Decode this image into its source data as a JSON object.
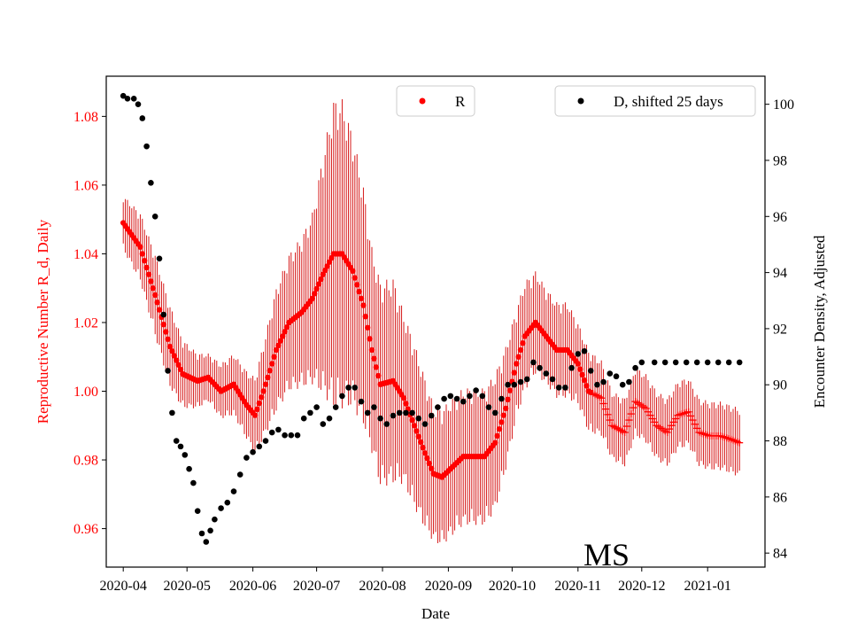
{
  "chart_data": {
    "type": "scatter",
    "title": "",
    "annotation": "MS",
    "xlabel": "Date",
    "ylabel_left": "Reproductive Number R_d, Daily",
    "ylabel_right": "Encounter Density, Adjusted",
    "x_range_days": [
      -8,
      302
    ],
    "x_ticks": [
      {
        "label": "2020-04",
        "day": 0
      },
      {
        "label": "2020-05",
        "day": 30
      },
      {
        "label": "2020-06",
        "day": 61
      },
      {
        "label": "2020-07",
        "day": 91
      },
      {
        "label": "2020-08",
        "day": 122
      },
      {
        "label": "2020-09",
        "day": 153
      },
      {
        "label": "2020-10",
        "day": 183
      },
      {
        "label": "2020-11",
        "day": 214
      },
      {
        "label": "2020-12",
        "day": 244
      },
      {
        "label": "2021-01",
        "day": 275
      }
    ],
    "y_left": {
      "range": [
        0.9488,
        1.0917
      ],
      "ticks": [
        "0.96",
        "0.98",
        "1.00",
        "1.02",
        "1.04",
        "1.06",
        "1.08"
      ],
      "color": "#ff0000"
    },
    "y_right": {
      "range": [
        83.5,
        101
      ],
      "ticks": [
        "84",
        "86",
        "88",
        "90",
        "92",
        "94",
        "96",
        "98",
        "100"
      ],
      "color": "#000000"
    },
    "legend": [
      {
        "label": "R",
        "color": "#ff0000",
        "position": "top-center"
      },
      {
        "label": "D, shifted 25 days",
        "color": "#000000",
        "position": "top-right"
      }
    ],
    "series": [
      {
        "name": "R",
        "axis": "left",
        "color": "#ff0000",
        "points": [
          [
            0,
            1.049,
            0.008
          ],
          [
            8,
            1.042,
            0.01
          ],
          [
            15,
            1.028,
            0.012
          ],
          [
            22,
            1.013,
            0.012
          ],
          [
            28,
            1.005,
            0.01
          ],
          [
            35,
            1.003,
            0.008
          ],
          [
            40,
            1.004,
            0.007
          ],
          [
            46,
            1.0,
            0.008
          ],
          [
            52,
            1.002,
            0.009
          ],
          [
            58,
            0.996,
            0.01
          ],
          [
            62,
            0.993,
            0.011
          ],
          [
            66,
            1.0,
            0.014
          ],
          [
            72,
            1.012,
            0.018
          ],
          [
            78,
            1.02,
            0.02
          ],
          [
            84,
            1.023,
            0.022
          ],
          [
            89,
            1.027,
            0.025
          ],
          [
            94,
            1.034,
            0.035
          ],
          [
            99,
            1.04,
            0.045
          ],
          [
            103,
            1.04,
            0.045
          ],
          [
            108,
            1.035,
            0.04
          ],
          [
            113,
            1.025,
            0.035
          ],
          [
            117,
            1.012,
            0.03
          ],
          [
            121,
            1.002,
            0.03
          ],
          [
            127,
            1.003,
            0.03
          ],
          [
            132,
            0.998,
            0.025
          ],
          [
            137,
            0.99,
            0.024
          ],
          [
            142,
            0.982,
            0.022
          ],
          [
            146,
            0.976,
            0.02
          ],
          [
            150,
            0.975,
            0.02
          ],
          [
            155,
            0.978,
            0.02
          ],
          [
            160,
            0.981,
            0.02
          ],
          [
            165,
            0.981,
            0.02
          ],
          [
            170,
            0.981,
            0.02
          ],
          [
            175,
            0.985,
            0.02
          ],
          [
            180,
            0.995,
            0.018
          ],
          [
            185,
            1.008,
            0.016
          ],
          [
            189,
            1.016,
            0.016
          ],
          [
            194,
            1.02,
            0.015
          ],
          [
            199,
            1.016,
            0.014
          ],
          [
            204,
            1.012,
            0.014
          ],
          [
            209,
            1.012,
            0.014
          ],
          [
            214,
            1.008,
            0.012
          ],
          [
            219,
            1.0,
            0.012
          ],
          [
            225,
            0.998,
            0.011
          ],
          [
            230,
            0.99,
            0.01
          ],
          [
            236,
            0.988,
            0.01
          ],
          [
            241,
            0.997,
            0.01
          ],
          [
            246,
            0.995,
            0.01
          ],
          [
            251,
            0.99,
            0.01
          ],
          [
            256,
            0.988,
            0.01
          ],
          [
            261,
            0.993,
            0.01
          ],
          [
            266,
            0.994,
            0.01
          ],
          [
            271,
            0.988,
            0.01
          ],
          [
            276,
            0.987,
            0.01
          ],
          [
            281,
            0.987,
            0.01
          ],
          [
            286,
            0.986,
            0.01
          ],
          [
            290,
            0.985,
            0.01
          ]
        ],
        "plus_markers_from_day": 221
      },
      {
        "name": "D, shifted 25 days",
        "axis": "right",
        "color": "#000000",
        "points": [
          [
            0,
            100.3
          ],
          [
            2,
            100.2
          ],
          [
            5,
            100.2
          ],
          [
            7,
            100.0
          ],
          [
            9,
            99.5
          ],
          [
            11,
            98.5
          ],
          [
            13,
            97.2
          ],
          [
            15,
            96.0
          ],
          [
            17,
            94.5
          ],
          [
            19,
            92.5
          ],
          [
            21,
            90.5
          ],
          [
            23,
            89.0
          ],
          [
            25,
            88.0
          ],
          [
            27,
            87.8
          ],
          [
            29,
            87.5
          ],
          [
            31,
            87.0
          ],
          [
            33,
            86.5
          ],
          [
            35,
            85.5
          ],
          [
            37,
            84.7
          ],
          [
            39,
            84.4
          ],
          [
            41,
            84.8
          ],
          [
            43,
            85.2
          ],
          [
            46,
            85.6
          ],
          [
            49,
            85.8
          ],
          [
            52,
            86.2
          ],
          [
            55,
            86.8
          ],
          [
            58,
            87.4
          ],
          [
            61,
            87.6
          ],
          [
            64,
            87.8
          ],
          [
            67,
            88.0
          ],
          [
            70,
            88.3
          ],
          [
            73,
            88.4
          ],
          [
            76,
            88.2
          ],
          [
            79,
            88.2
          ],
          [
            82,
            88.2
          ],
          [
            85,
            88.8
          ],
          [
            88,
            89.0
          ],
          [
            91,
            89.2
          ],
          [
            94,
            88.6
          ],
          [
            97,
            88.8
          ],
          [
            100,
            89.2
          ],
          [
            103,
            89.6
          ],
          [
            106,
            89.9
          ],
          [
            109,
            89.9
          ],
          [
            112,
            89.4
          ],
          [
            115,
            89.0
          ],
          [
            118,
            89.2
          ],
          [
            121,
            88.8
          ],
          [
            124,
            88.6
          ],
          [
            127,
            88.9
          ],
          [
            130,
            89.0
          ],
          [
            133,
            89.0
          ],
          [
            136,
            89.0
          ],
          [
            139,
            88.8
          ],
          [
            142,
            88.6
          ],
          [
            145,
            88.9
          ],
          [
            148,
            89.2
          ],
          [
            151,
            89.5
          ],
          [
            154,
            89.6
          ],
          [
            157,
            89.5
          ],
          [
            160,
            89.4
          ],
          [
            163,
            89.6
          ],
          [
            166,
            89.8
          ],
          [
            169,
            89.6
          ],
          [
            172,
            89.2
          ],
          [
            175,
            89.0
          ],
          [
            178,
            89.5
          ],
          [
            181,
            90.0
          ],
          [
            184,
            90.0
          ],
          [
            187,
            90.1
          ],
          [
            190,
            90.2
          ],
          [
            193,
            90.8
          ],
          [
            196,
            90.6
          ],
          [
            199,
            90.4
          ],
          [
            202,
            90.2
          ],
          [
            205,
            89.9
          ],
          [
            208,
            89.9
          ],
          [
            211,
            90.6
          ],
          [
            214,
            91.1
          ],
          [
            217,
            91.2
          ],
          [
            220,
            90.5
          ],
          [
            223,
            90.0
          ],
          [
            226,
            90.1
          ],
          [
            229,
            90.4
          ],
          [
            232,
            90.3
          ],
          [
            235,
            90.0
          ],
          [
            238,
            90.1
          ],
          [
            241,
            90.6
          ],
          [
            244,
            90.8
          ],
          [
            250,
            90.8
          ],
          [
            255,
            90.8
          ],
          [
            260,
            90.8
          ],
          [
            265,
            90.8
          ],
          [
            270,
            90.8
          ],
          [
            275,
            90.8
          ],
          [
            280,
            90.8
          ],
          [
            285,
            90.8
          ],
          [
            290,
            90.8
          ]
        ]
      }
    ]
  }
}
